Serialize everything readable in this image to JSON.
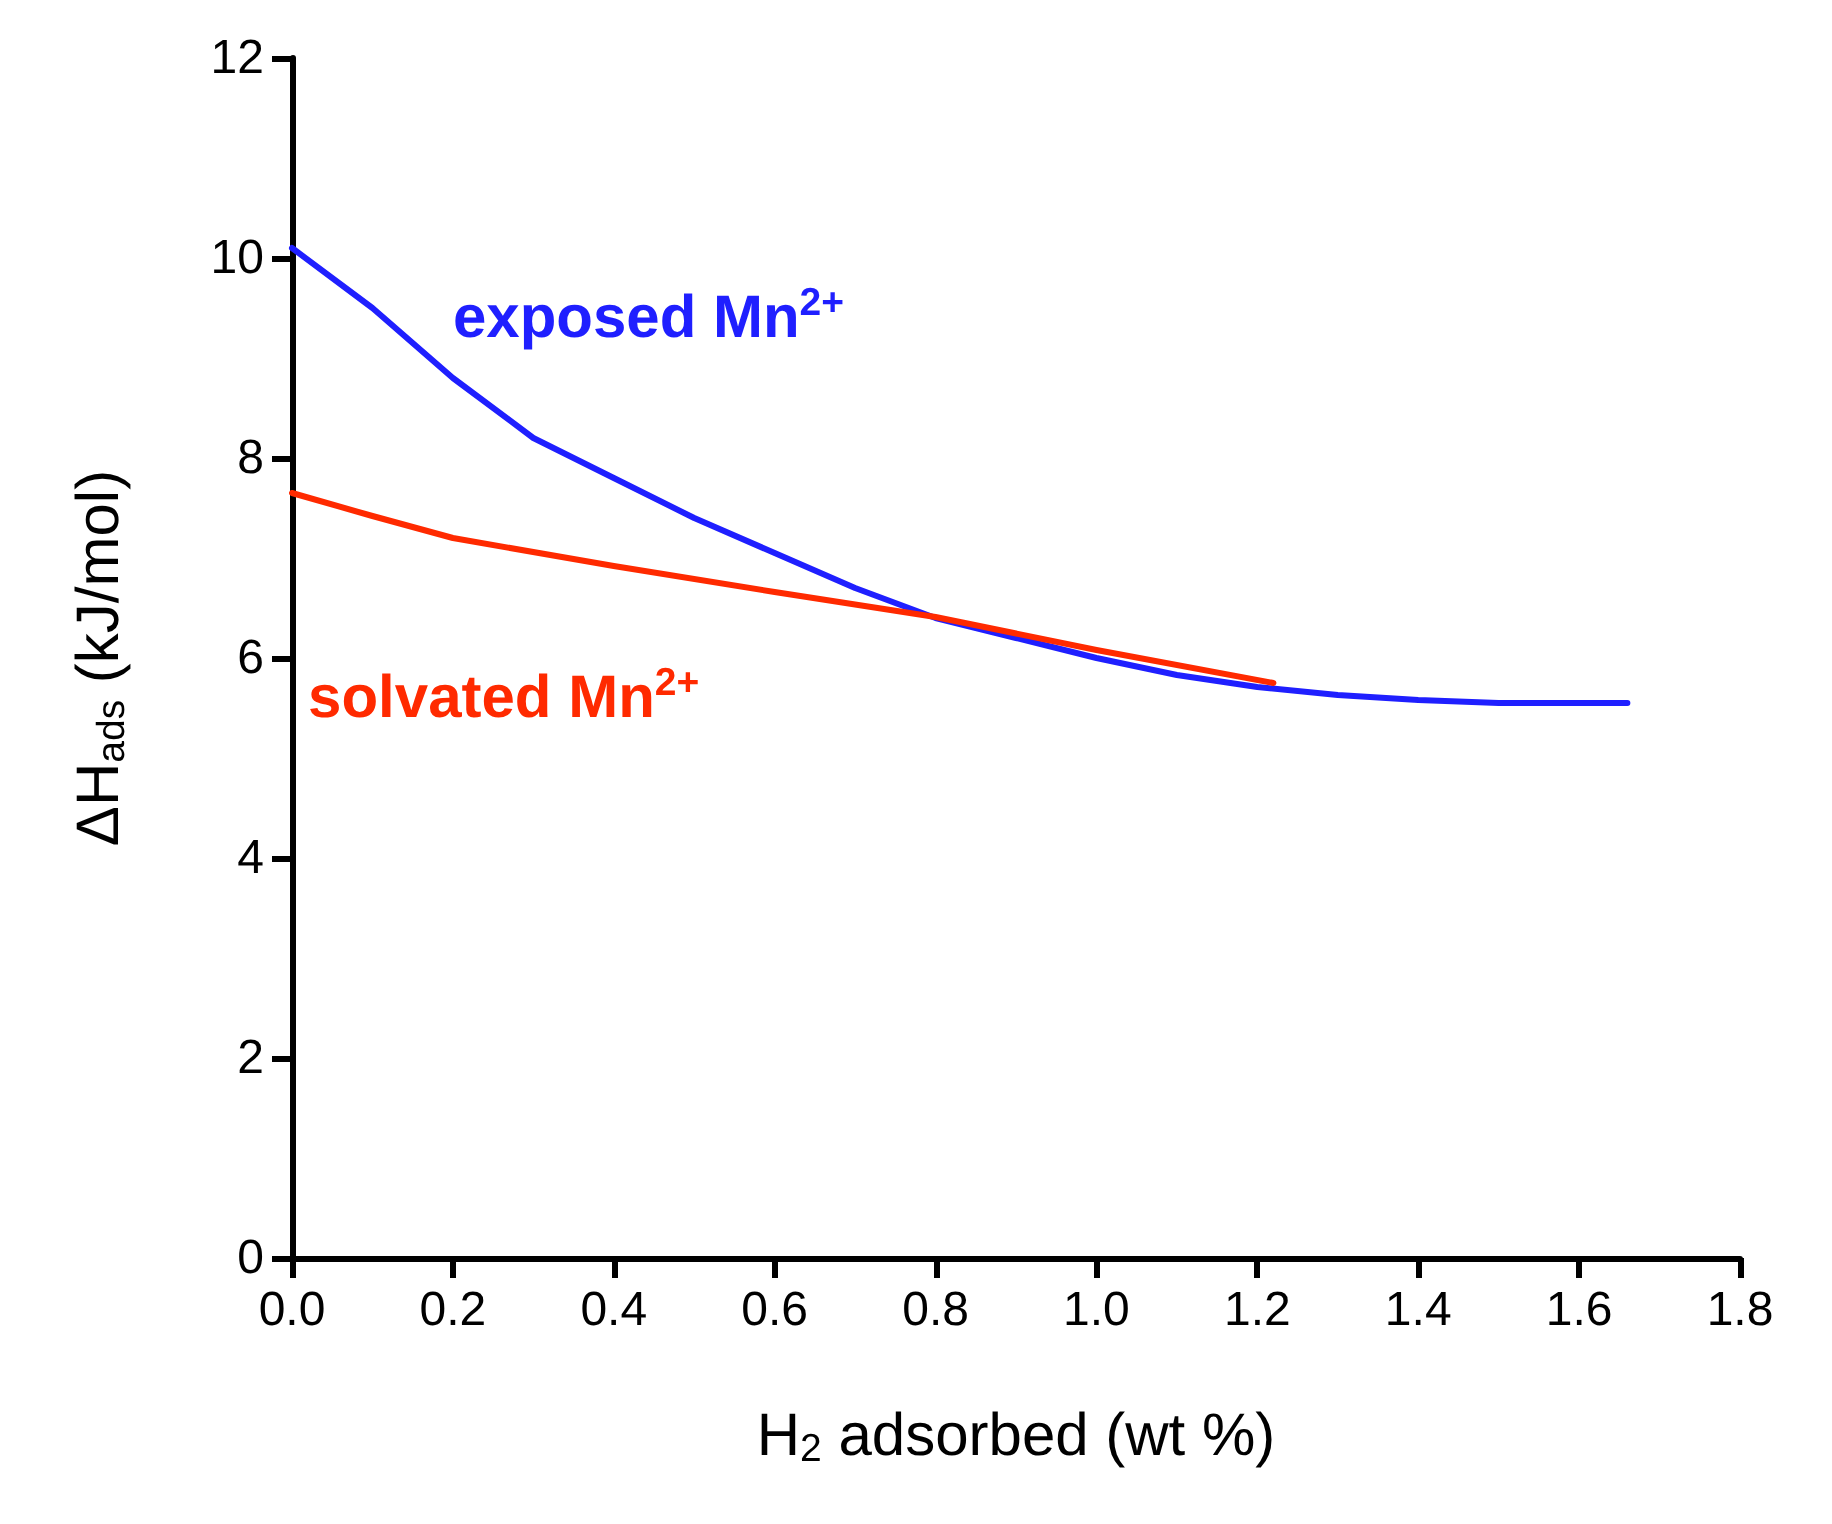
{
  "chart_data": {
    "type": "line",
    "xlabel": "H$_{2}$ adsorbed (wt %)",
    "ylabel": "ΔH$_{ads}$ (kJ/mol)",
    "series": [
      {
        "name": "exposed Mn$^{2+}$",
        "color": "#1f1fff",
        "x": [
          0,
          0.1,
          0.2,
          0.3,
          0.4,
          0.5,
          0.6,
          0.7,
          0.8,
          0.9,
          1.0,
          1.1,
          1.2,
          1.3,
          1.4,
          1.5,
          1.66
        ],
        "values": [
          10.1,
          9.5,
          8.8,
          8.2,
          7.8,
          7.4,
          7.05,
          6.7,
          6.4,
          6.2,
          6.0,
          5.83,
          5.71,
          5.63,
          5.58,
          5.55,
          5.55
        ]
      },
      {
        "name": "solvated Mn$^{2+}$",
        "color": "#ff2a00",
        "x": [
          0,
          0.1,
          0.2,
          0.4,
          0.6,
          0.8,
          1.0,
          1.22
        ],
        "values": [
          7.65,
          7.42,
          7.2,
          6.92,
          6.66,
          6.41,
          6.08,
          5.75
        ]
      }
    ],
    "xlim": [
      0,
      1.8
    ],
    "xticks": [
      {
        "value": 0,
        "label": "0.0"
      },
      {
        "value": 0.2,
        "label": "0.2"
      },
      {
        "value": 0.4,
        "label": "0.4"
      },
      {
        "value": 0.6,
        "label": "0.6"
      },
      {
        "value": 0.8,
        "label": "0.8"
      },
      {
        "value": 1,
        "label": "1.0"
      },
      {
        "value": 1.2,
        "label": "1.2"
      },
      {
        "value": 1.4,
        "label": "1.4"
      },
      {
        "value": 1.6,
        "label": "1.6"
      },
      {
        "value": 1.8,
        "label": "1.8"
      }
    ],
    "ylim": [
      0,
      12
    ],
    "yticks": [
      0,
      2,
      4,
      6,
      8,
      10,
      12
    ],
    "grid": false,
    "legend": false,
    "marker": "none",
    "line_style": "solid"
  }
}
